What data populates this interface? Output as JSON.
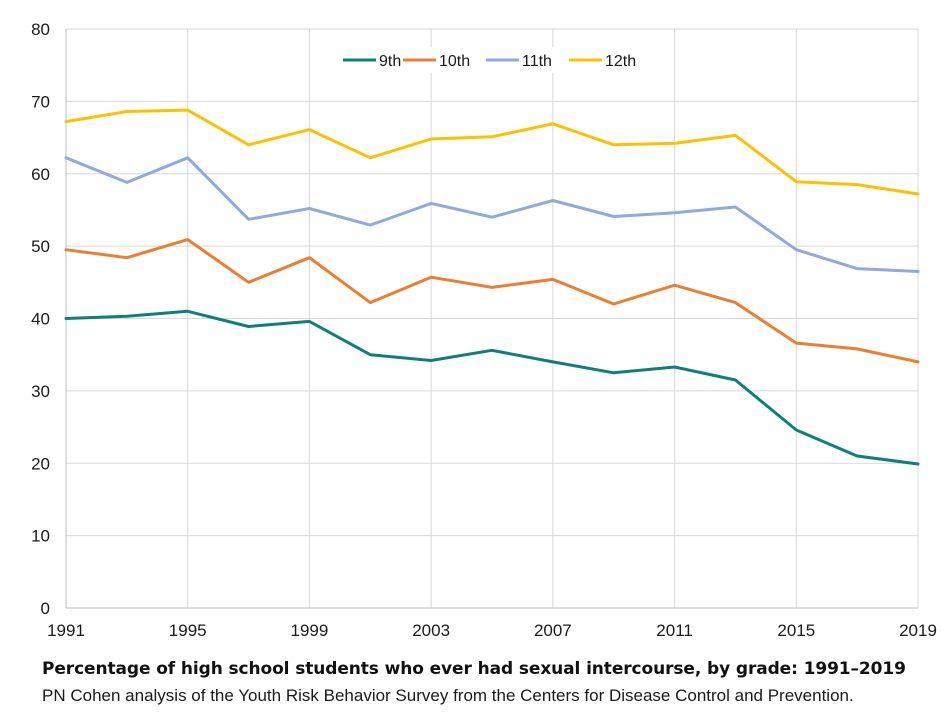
{
  "chart_data": {
    "type": "line",
    "title": "Percentage of high school students who ever had sexual intercourse, by grade: 1991–2019",
    "subtitle": "PN Cohen analysis of the Youth Risk Behavior Survey from the Centers for Disease Control and Prevention.",
    "xlabel": "",
    "ylabel": "",
    "x": [
      1991,
      1993,
      1995,
      1997,
      1999,
      2001,
      2003,
      2005,
      2007,
      2009,
      2011,
      2013,
      2015,
      2017,
      2019
    ],
    "x_tick_labels": [
      "1991",
      "1995",
      "1999",
      "2003",
      "2007",
      "2011",
      "2015",
      "2019"
    ],
    "x_ticks": [
      1991,
      1995,
      1999,
      2003,
      2007,
      2011,
      2015,
      2019
    ],
    "xlim": [
      1991,
      2019
    ],
    "y_tick_labels": [
      "0",
      "10",
      "20",
      "30",
      "40",
      "50",
      "60",
      "70",
      "80"
    ],
    "y_ticks": [
      0,
      10,
      20,
      30,
      40,
      50,
      60,
      70,
      80
    ],
    "ylim": [
      0,
      80
    ],
    "grid": true,
    "legend_position": "top-center",
    "series": [
      {
        "name": "9th",
        "color": "#0f7f7a",
        "values": [
          40.0,
          40.3,
          41.0,
          38.9,
          39.6,
          35.0,
          34.2,
          35.6,
          34.0,
          32.5,
          33.3,
          31.5,
          24.6,
          21.0,
          19.9
        ]
      },
      {
        "name": "10th",
        "color": "#ed7d31",
        "values": [
          49.5,
          48.4,
          50.9,
          45.0,
          48.4,
          42.2,
          45.7,
          44.3,
          45.4,
          42.0,
          44.6,
          42.2,
          36.6,
          35.8,
          34.0
        ]
      },
      {
        "name": "11th",
        "color": "#8faadc",
        "values": [
          62.2,
          58.8,
          62.2,
          53.7,
          55.2,
          52.9,
          55.9,
          54.0,
          56.3,
          54.1,
          54.6,
          55.4,
          49.5,
          46.9,
          46.5
        ]
      },
      {
        "name": "12th",
        "color": "#ffc000",
        "values": [
          67.2,
          68.6,
          68.8,
          64.0,
          66.1,
          62.2,
          64.8,
          65.1,
          66.9,
          64.0,
          64.2,
          65.3,
          58.9,
          58.5,
          57.2
        ]
      }
    ]
  },
  "caption": {
    "title": "Percentage of high school students who ever had sexual intercourse, by grade: 1991–2019",
    "source": "PN Cohen analysis of the Youth Risk Behavior Survey from the Centers for Disease Control and Prevention."
  }
}
